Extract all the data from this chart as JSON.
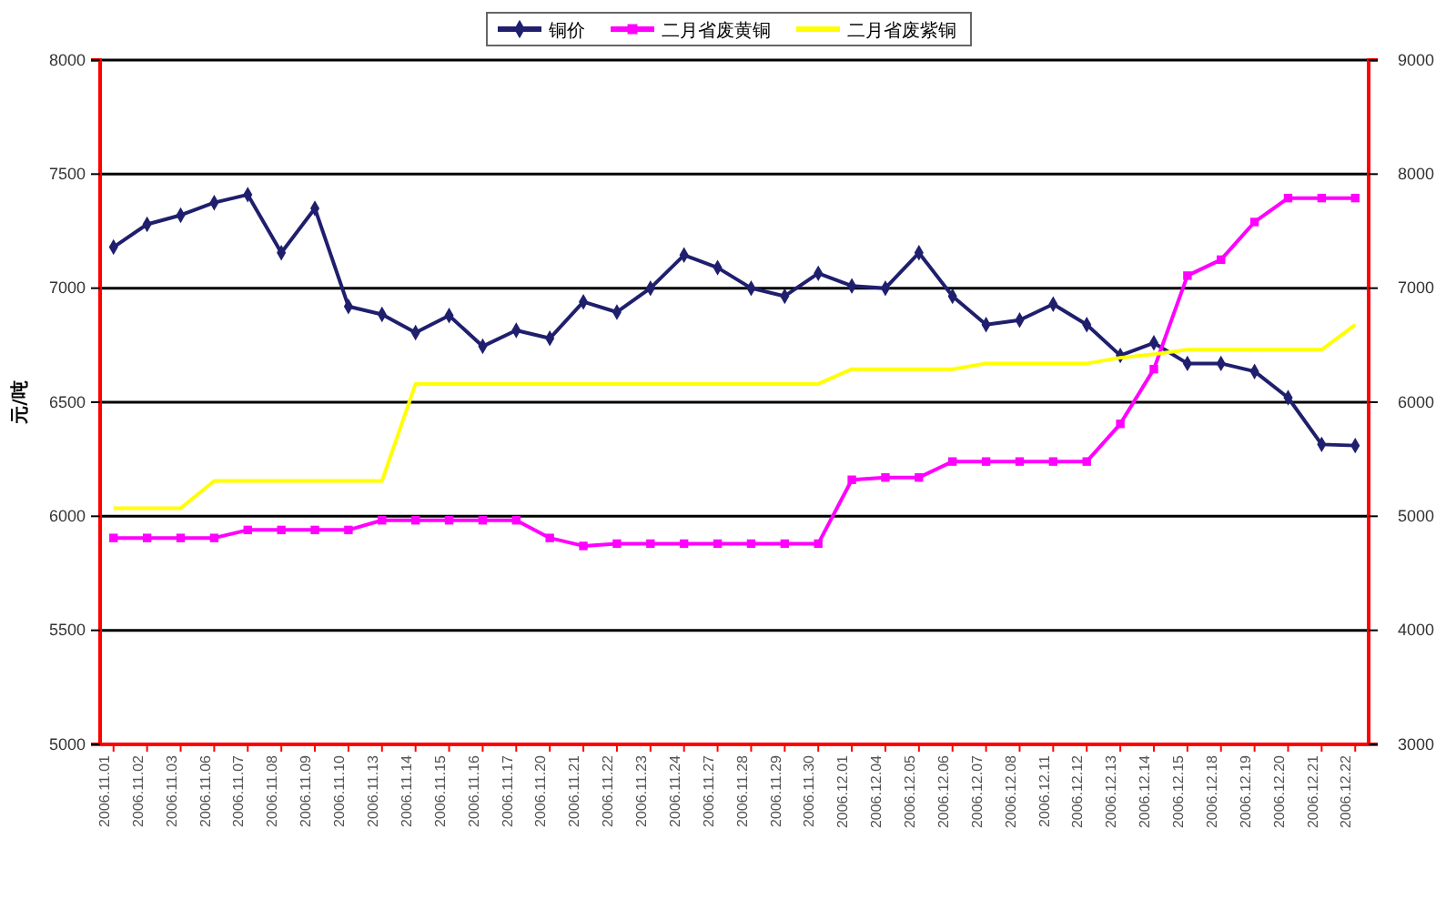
{
  "chart_data": {
    "type": "line",
    "ylabel": "元/吨",
    "categories": [
      "2006.11.01",
      "2006.11.02",
      "2006.11.03",
      "2006.11.06",
      "2006.11.07",
      "2006.11.08",
      "2006.11.09",
      "2006.11.10",
      "2006.11.13",
      "2006.11.14",
      "2006.11.15",
      "2006.11.16",
      "2006.11.17",
      "2006.11.20",
      "2006.11.21",
      "2006.11.22",
      "2006.11.23",
      "2006.11.24",
      "2006.11.27",
      "2006.11.28",
      "2006.11.29",
      "2006.11.30",
      "2006.12.01",
      "2006.12.04",
      "2006.12.05",
      "2006.12.06",
      "2006.12.07",
      "2006.12.08",
      "2006.12.11",
      "2006.12.12",
      "2006.12.13",
      "2006.12.14",
      "2006.12.15",
      "2006.12.18",
      "2006.12.19",
      "2006.12.20",
      "2006.12.21",
      "2006.12.22"
    ],
    "series": [
      {
        "name": "铜价",
        "color": "#1f1f6e",
        "marker": "diamond",
        "values": [
          7180,
          7280,
          7320,
          7375,
          7410,
          7155,
          7350,
          6920,
          6885,
          6805,
          6880,
          6745,
          6815,
          6780,
          6940,
          6895,
          7000,
          7145,
          7090,
          7000,
          6965,
          7065,
          7010,
          7000,
          7155,
          6965,
          6840,
          6860,
          6930,
          6840,
          6705,
          6760,
          6670,
          6670,
          6635,
          6520,
          6315,
          6310
        ]
      },
      {
        "name": "二月省废黄铜",
        "color": "#ff00ff",
        "marker": "square",
        "axis": "y2",
        "values": [
          4810,
          4810,
          4810,
          4810,
          4880,
          4880,
          4880,
          4880,
          4965,
          4965,
          4965,
          4965,
          4965,
          4810,
          4740,
          4760,
          4760,
          4760,
          4760,
          4760,
          4760,
          4760,
          5320,
          5340,
          5340,
          5480,
          5480,
          5480,
          5480,
          5480,
          5810,
          6290,
          7110,
          7250,
          7580,
          7790,
          7790,
          7790
        ]
      },
      {
        "name": "二月省废紫铜",
        "color": "#ffff00",
        "marker": "none",
        "axis": "y2",
        "values": [
          5070,
          5070,
          5070,
          5310,
          5310,
          5310,
          5310,
          5310,
          5310,
          6160,
          6160,
          6160,
          6160,
          6160,
          6160,
          6160,
          6160,
          6160,
          6160,
          6160,
          6160,
          6160,
          6290,
          6290,
          6290,
          6290,
          6340,
          6340,
          6340,
          6340,
          6390,
          6420,
          6460,
          6460,
          6460,
          6460,
          6460,
          6680
        ]
      }
    ],
    "ylim": [
      5000,
      8000
    ],
    "yticks": [
      5000,
      5500,
      6000,
      6500,
      7000,
      7500,
      8000
    ],
    "y2lim": [
      3000,
      9000
    ],
    "y2ticks": [
      3000,
      4000,
      5000,
      6000,
      7000,
      8000,
      9000
    ],
    "grid": "y",
    "legend": "top"
  }
}
